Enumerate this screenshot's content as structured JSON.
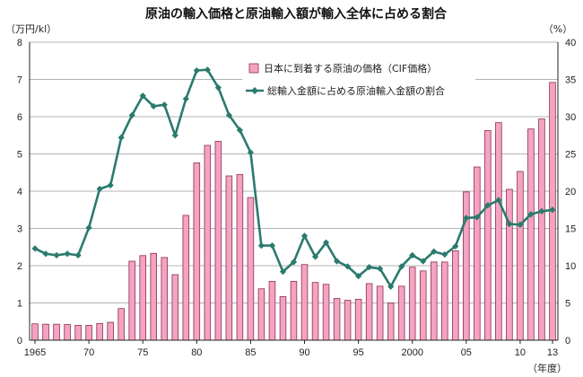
{
  "chart_data": {
    "type": "bar+line",
    "title": "原油の輸入価格と原油輸入額が輸入全体に占める割合",
    "y_left_unit": "（万円/kl）",
    "y_right_unit": "（%）",
    "x_unit": "（年度）",
    "y_left_range": [
      0,
      8
    ],
    "y_right_range": [
      0,
      40
    ],
    "y_left_ticks": [
      "0",
      "1",
      "2",
      "3",
      "4",
      "5",
      "6",
      "7",
      "8"
    ],
    "y_right_ticks": [
      "0",
      "5",
      "10",
      "15",
      "20",
      "25",
      "30",
      "35",
      "40"
    ],
    "x_tick_labels": [
      {
        "year": 1965,
        "label": "1965"
      },
      {
        "year": 1970,
        "label": "70"
      },
      {
        "year": 1975,
        "label": "75"
      },
      {
        "year": 1980,
        "label": "80"
      },
      {
        "year": 1985,
        "label": "85"
      },
      {
        "year": 1990,
        "label": "90"
      },
      {
        "year": 1995,
        "label": "95"
      },
      {
        "year": 2000,
        "label": "2000"
      },
      {
        "year": 2005,
        "label": "05"
      },
      {
        "year": 2010,
        "label": "10"
      },
      {
        "year": 2013,
        "label": "13"
      }
    ],
    "grid": true,
    "legend_position": "top-right",
    "years": [
      1965,
      1966,
      1967,
      1968,
      1969,
      1970,
      1971,
      1972,
      1973,
      1974,
      1975,
      1976,
      1977,
      1978,
      1979,
      1980,
      1981,
      1982,
      1983,
      1984,
      1985,
      1986,
      1987,
      1988,
      1989,
      1990,
      1991,
      1992,
      1993,
      1994,
      1995,
      1996,
      1997,
      1998,
      1999,
      2000,
      2001,
      2002,
      2003,
      2004,
      2005,
      2006,
      2007,
      2008,
      2009,
      2010,
      2011,
      2012,
      2013
    ],
    "series": [
      {
        "name": "日本に到着する原油の価格（CIF価格）",
        "type": "bar",
        "axis": "left",
        "color": "#f4a3c0",
        "stroke": "#8a2f55",
        "values": [
          0.44,
          0.43,
          0.43,
          0.42,
          0.4,
          0.4,
          0.45,
          0.48,
          0.85,
          2.12,
          2.27,
          2.33,
          2.22,
          1.76,
          3.35,
          4.76,
          5.23,
          5.34,
          4.41,
          4.45,
          3.83,
          1.38,
          1.58,
          1.17,
          1.58,
          2.03,
          1.55,
          1.5,
          1.12,
          1.07,
          1.1,
          1.52,
          1.45,
          1.0,
          1.45,
          1.96,
          1.86,
          2.1,
          2.1,
          2.4,
          3.98,
          4.65,
          5.63,
          5.84,
          4.05,
          4.53,
          5.67,
          5.94,
          6.92
        ]
      },
      {
        "name": "総輸入金額に占める原油輸入金額の割合",
        "type": "line",
        "axis": "right",
        "color": "#2a7a6e",
        "values": [
          12.3,
          11.6,
          11.4,
          11.6,
          11.4,
          15.1,
          20.3,
          20.8,
          27.2,
          30.2,
          32.8,
          31.4,
          31.6,
          27.5,
          32.4,
          36.2,
          36.3,
          33.9,
          30.2,
          28.2,
          25.2,
          12.7,
          12.7,
          9.2,
          10.5,
          14.0,
          11.2,
          13.1,
          10.6,
          9.9,
          8.6,
          9.8,
          9.6,
          7.2,
          9.9,
          11.4,
          10.6,
          11.9,
          11.5,
          12.6,
          16.4,
          16.5,
          18.1,
          18.8,
          15.6,
          15.5,
          16.9,
          17.3,
          17.5
        ]
      }
    ]
  }
}
